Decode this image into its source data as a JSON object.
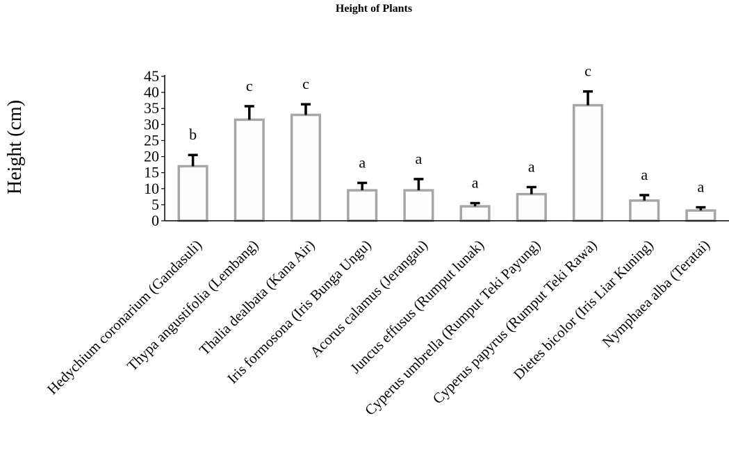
{
  "chart_data": {
    "type": "bar",
    "title": "Height of Plants",
    "xlabel": "",
    "ylabel": "Height (cm)",
    "ylim": [
      0,
      45
    ],
    "yticks": [
      0,
      5,
      10,
      15,
      20,
      25,
      30,
      35,
      40,
      45
    ],
    "grid": false,
    "legend": "none",
    "categories": [
      "Hedychium coronarium (Gandasuli)",
      "Thypa angustifolia (Lembang)",
      "Thalia dealbata (Kana Air)",
      "Iris formosona (Iris Bunga Ungu)",
      "Acorus calamus (Jerangau)",
      "Juncus effusus (Rumput lunak)",
      "Cyperus umbrella (Rumput Teki Payung)",
      "Cyperus papyrus (Rumput Teki Rawa)",
      "Dietes bicolor (Iris Liar Kuning)",
      "Nymphaea alba (Teratai)"
    ],
    "values": [
      17,
      31.5,
      33,
      9.5,
      9.5,
      4.5,
      8.3,
      36,
      6.3,
      3.2
    ],
    "errors": [
      3.5,
      4.2,
      3.3,
      2.3,
      3.5,
      1.0,
      2.2,
      4.3,
      1.7,
      1.0
    ],
    "annotations": [
      "b",
      "c",
      "c",
      "a",
      "a",
      "a",
      "a",
      "c",
      "a",
      "a"
    ],
    "colors": {
      "bar_fill": "#fdfdfd",
      "bar_edge": "#a6a6a6",
      "error_bar": "#000000",
      "axis": "#000000"
    }
  }
}
